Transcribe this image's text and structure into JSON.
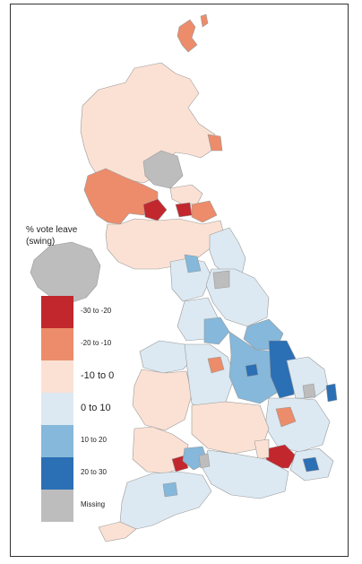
{
  "legend": {
    "title": "% vote leave\n(swing)",
    "entries": [
      {
        "label": "-30 to -20",
        "color": "#c1272d",
        "size": "s"
      },
      {
        "label": "-20 to -10",
        "color": "#ec8c6a",
        "size": "s"
      },
      {
        "label": "-10 to 0",
        "color": "#fbe1d4",
        "size": "l"
      },
      {
        "label": "0 to 10",
        "color": "#dce9f2",
        "size": "l"
      },
      {
        "label": "10 to 20",
        "color": "#85b8da",
        "size": "s"
      },
      {
        "label": "20 to 30",
        "color": "#2b6fb5",
        "size": "s"
      },
      {
        "label": "Missing",
        "color": "#bdbdbd",
        "size": "s"
      }
    ]
  },
  "colors": {
    "border": "#9a9a9a",
    "background": "#ffffff"
  }
}
